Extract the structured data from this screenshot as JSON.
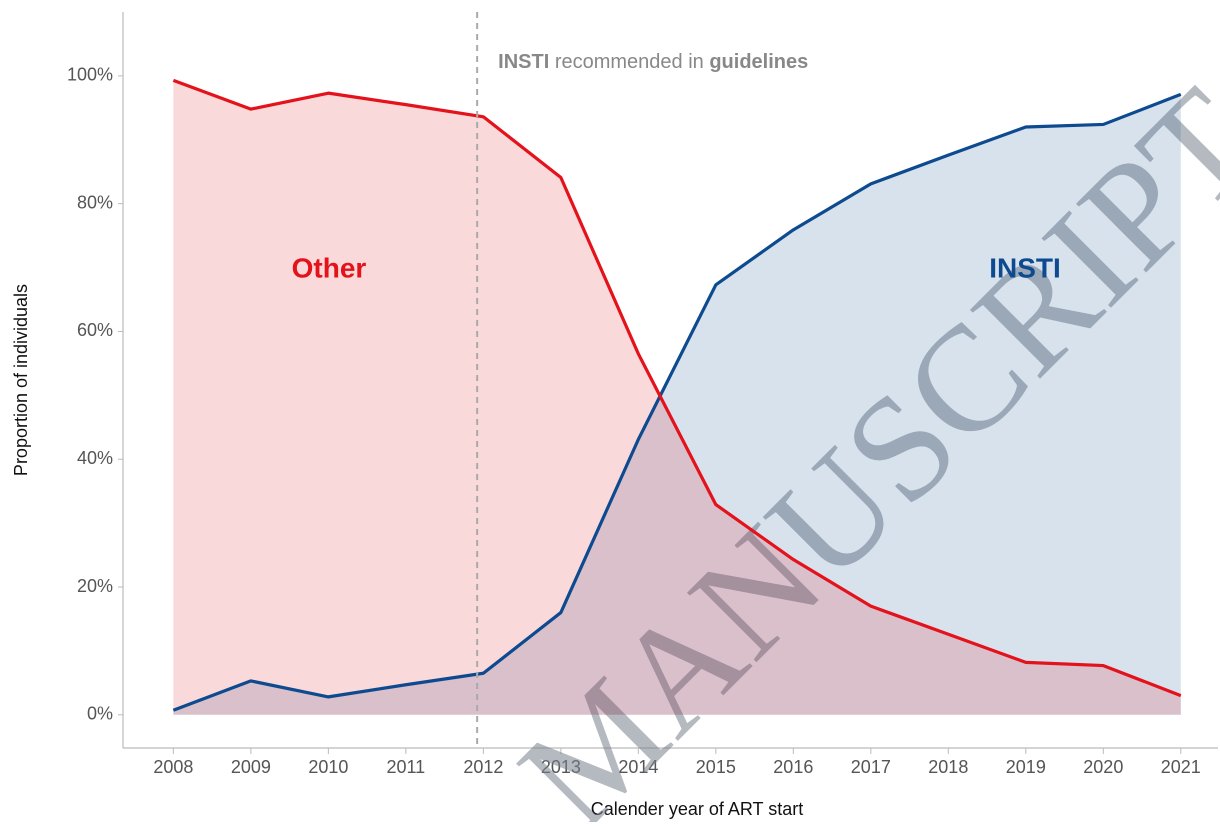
{
  "chart_data": {
    "type": "line",
    "xlabel": "Calender year of ART start",
    "ylabel": "Proportion of individuals",
    "x": [
      2008,
      2009,
      2010,
      2011,
      2012,
      2013,
      2014,
      2015,
      2016,
      2017,
      2018,
      2019,
      2020,
      2021
    ],
    "series": [
      {
        "name": "INSTI",
        "color": "#0d4a8f",
        "fill": true,
        "values": [
          0.7,
          5.3,
          2.8,
          4.7,
          6.5,
          16.0,
          43.1,
          67.3,
          75.9,
          83.1,
          87.6,
          92.0,
          92.4,
          97.1
        ]
      },
      {
        "name": "Other",
        "color": "#e3121b",
        "fill": true,
        "values": [
          99.3,
          94.8,
          97.3,
          95.5,
          93.6,
          84.1,
          56.5,
          32.9,
          24.3,
          17.0,
          12.6,
          8.2,
          7.7,
          3.0
        ]
      }
    ],
    "xlim": [
      2007.35,
      2021.48
    ],
    "ylim": [
      -5.2,
      110
    ],
    "xticks": [
      2008,
      2009,
      2010,
      2011,
      2012,
      2013,
      2014,
      2015,
      2016,
      2017,
      2018,
      2019,
      2020,
      2021
    ],
    "yticks": [
      {
        "value": 0,
        "label": "0%"
      },
      {
        "value": 20,
        "label": "20%"
      },
      {
        "value": 40,
        "label": "40%"
      },
      {
        "value": 60,
        "label": "60%"
      },
      {
        "value": 80,
        "label": "80%"
      },
      {
        "value": 100,
        "label": "100%"
      }
    ],
    "vline": 2011.92,
    "annotation": [
      {
        "text": "INSTI",
        "bold": true
      },
      {
        "text": " recommended in ",
        "bold": false
      },
      {
        "text": "guidelines",
        "bold": true
      }
    ],
    "watermark": "MANUSCRIPT"
  }
}
